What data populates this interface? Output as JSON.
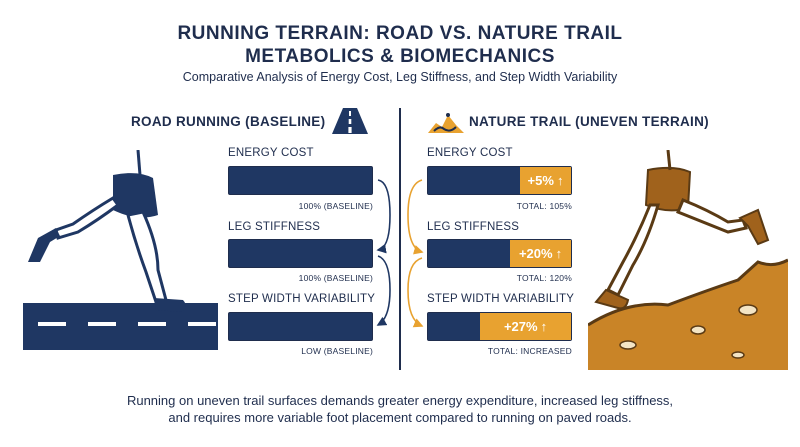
{
  "header": {
    "title_line1": "RUNNING TERRAIN: ROAD VS. NATURE TRAIL",
    "title_line2": "METABOLICS & BIOMECHANICS",
    "subtitle": "Comparative Analysis of Energy Cost, Leg Stiffness, and Step Width Variability"
  },
  "road": {
    "heading": "ROAD RUNNING (BASELINE)",
    "icon": "road-icon",
    "metrics": [
      {
        "label": "ENERGY COST",
        "caption": "100% (BASELINE)"
      },
      {
        "label": "LEG STIFFNESS",
        "caption": "100% (BASELINE)"
      },
      {
        "label": "STEP WIDTH VARIABILITY",
        "caption": "LOW (BASELINE)"
      }
    ]
  },
  "trail": {
    "heading": "NATURE TRAIL (UNEVEN TERRAIN)",
    "icon": "trail-icon",
    "metrics": [
      {
        "label": "ENERGY COST",
        "delta": "+5%",
        "caption": "TOTAL: 105%",
        "extra_fraction": 0.28
      },
      {
        "label": "LEG STIFFNESS",
        "delta": "+20%",
        "caption": "TOTAL: 120%",
        "extra_fraction": 0.35
      },
      {
        "label": "STEP WIDTH VARIABILITY",
        "delta": "+27%",
        "caption": "TOTAL: INCREASED",
        "extra_fraction": 0.42
      }
    ]
  },
  "footer": {
    "line1": "Running on uneven trail surfaces demands greater energy expenditure, increased leg stiffness,",
    "line2": "and requires more variable foot placement compared to running on paved roads."
  },
  "colors": {
    "navy": "#1f3763",
    "orange": "#e8a230",
    "brown": "#a0621c",
    "text": "#1f2d4d"
  }
}
